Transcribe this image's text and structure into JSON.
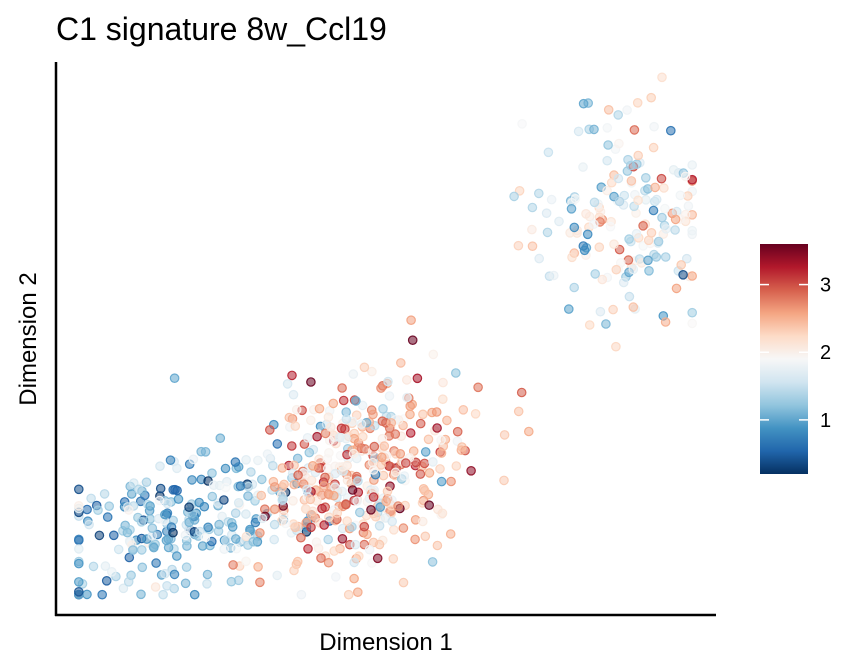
{
  "chart_data": {
    "type": "scatter",
    "title": "C1 signature 8w_Ccl19",
    "xlabel": "Dimension 1",
    "ylabel": "Dimension 2",
    "xlim": [
      0,
      100
    ],
    "ylim": [
      0,
      100
    ],
    "x_ticks_shown": false,
    "y_ticks_shown": false,
    "grid": false,
    "color_scale": {
      "name": "RdBu (reversed)",
      "min": 0.2,
      "max": 3.6,
      "ticks": [
        1,
        2,
        3
      ],
      "tick_labels": [
        "1",
        "2",
        "3"
      ],
      "stops": [
        "#053061",
        "#2166ac",
        "#4393c3",
        "#92c5de",
        "#d1e5f0",
        "#f7f7f7",
        "#fddbc7",
        "#f4a582",
        "#d6604d",
        "#b2182b",
        "#67001f"
      ]
    },
    "legend_placement": "right",
    "point_opacity": 0.55,
    "clusters": [
      {
        "name": "lower-left",
        "cx": 18,
        "cy": 14,
        "sx": 10,
        "sy": 6,
        "n": 230,
        "vmean": 1.1,
        "vsd": 0.45
      },
      {
        "name": "center",
        "cx": 46,
        "cy": 24,
        "sx": 8,
        "sy": 9,
        "n": 430,
        "vmean": 2.3,
        "vsd": 0.55
      },
      {
        "name": "upper-right",
        "cx": 88,
        "cy": 74,
        "sx": 7,
        "sy": 10,
        "n": 180,
        "vmean": 1.7,
        "vsd": 0.55
      }
    ],
    "points_sample": [
      {
        "x": 5,
        "y": 17,
        "v": 1.3
      },
      {
        "x": 17,
        "y": 42,
        "v": 1.0
      },
      {
        "x": 73,
        "y": 67,
        "v": 2.4
      },
      {
        "x": 81,
        "y": 94,
        "v": 1.0
      },
      {
        "x": 54,
        "y": 53,
        "v": 2.6
      },
      {
        "x": 61,
        "y": 43,
        "v": 1.2
      }
    ]
  }
}
